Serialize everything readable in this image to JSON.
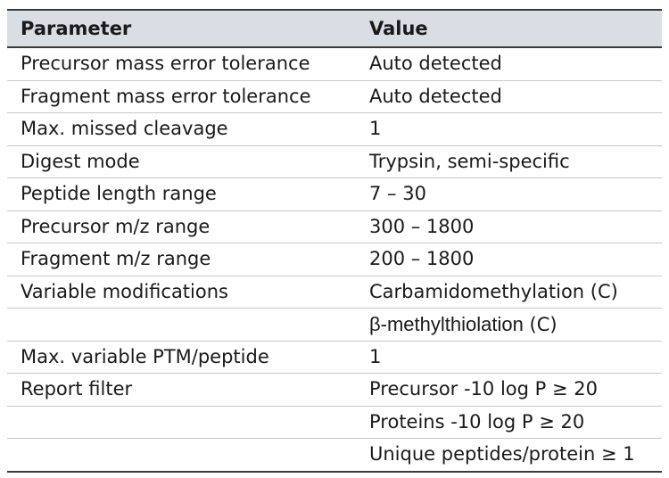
{
  "table": {
    "headers": {
      "parameter": "Parameter",
      "value": "Value"
    },
    "rows": [
      {
        "parameter": "Precursor mass error tolerance",
        "value": "Auto detected"
      },
      {
        "parameter": "Fragment mass error tolerance",
        "value": "Auto detected"
      },
      {
        "parameter": "Max. missed cleavage",
        "value": "1"
      },
      {
        "parameter": "Digest mode",
        "value": "Trypsin, semi-specific"
      },
      {
        "parameter": "Peptide length range",
        "value": "7 – 30"
      },
      {
        "parameter": "Precursor m/z range",
        "value": "300 – 1800"
      },
      {
        "parameter": "Fragment m/z range",
        "value": "200 – 1800"
      },
      {
        "parameter": "Variable modifications",
        "value": "Carbamidomethylation (C)"
      },
      {
        "parameter": "",
        "value_main": "β-methylthiolation",
        "value_suffix": " (C)"
      },
      {
        "parameter": "Max. variable PTM/peptide",
        "value": "1"
      },
      {
        "parameter": "Report filter",
        "value": "Precursor -10 log P ≥ 20"
      },
      {
        "parameter": "",
        "value": "Proteins -10 log P ≥ 20"
      },
      {
        "parameter": "",
        "value": "Unique peptides/protein ≥ 1"
      }
    ]
  }
}
